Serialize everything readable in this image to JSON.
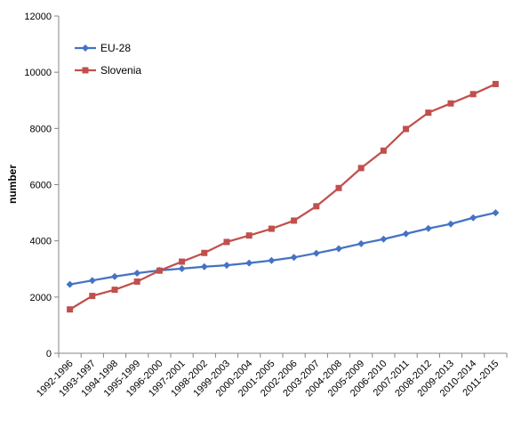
{
  "chart_data": {
    "type": "line",
    "ylabel": "number",
    "ylim": [
      0,
      12000
    ],
    "yticks": [
      0,
      2000,
      4000,
      6000,
      8000,
      10000,
      12000
    ],
    "grid": false,
    "legend_position": "top-left",
    "categories": [
      "1992-1996",
      "1993-1997",
      "1994-1998",
      "1995-1999",
      "1996-2000",
      "1997-2001",
      "1998-2002",
      "1999-2003",
      "2000-2004",
      "2001-2005",
      "2002-2006",
      "2003-2007",
      "2004-2008",
      "2005-2009",
      "2006-2010",
      "2007-2011",
      "2008-2012",
      "2009-2013",
      "2010-2014",
      "2011-2015"
    ],
    "series": [
      {
        "name": "EU-28",
        "color": "#4472C4",
        "marker": "diamond",
        "values": [
          2450,
          2590,
          2730,
          2850,
          2950,
          3010,
          3080,
          3130,
          3210,
          3300,
          3410,
          3560,
          3720,
          3900,
          4060,
          4250,
          4440,
          4600,
          4820,
          5000
        ]
      },
      {
        "name": "Slovenia",
        "color": "#C0504D",
        "marker": "square",
        "values": [
          1560,
          2040,
          2260,
          2550,
          2940,
          3260,
          3570,
          3960,
          4190,
          4430,
          4720,
          5230,
          5880,
          6590,
          7210,
          7980,
          8560,
          8890,
          9220,
          9580
        ]
      }
    ]
  }
}
